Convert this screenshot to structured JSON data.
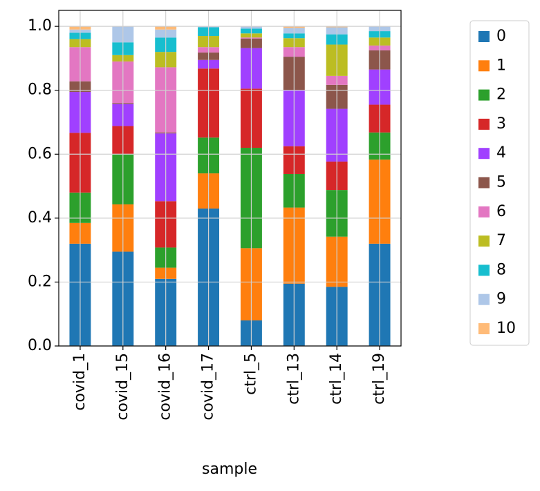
{
  "chart_data": {
    "type": "stacked_bar",
    "xlabel": "sample",
    "categories": [
      "covid_1",
      "covid_15",
      "covid_16",
      "covid_17",
      "ctrl_5",
      "ctrl_13",
      "ctrl_14",
      "ctrl_19"
    ],
    "ylim": [
      0,
      1.05
    ],
    "yticks": [
      {
        "value": 0,
        "label": "0.0"
      },
      0.2,
      0.4,
      0.6,
      0.8,
      {
        "value": 1,
        "label": "1.0"
      }
    ],
    "grid": true,
    "legend": "outside right",
    "series": [
      {
        "name": "0",
        "color": "#1f77b4",
        "values": [
          0.32,
          0.295,
          0.21,
          0.43,
          0.08,
          0.195,
          0.185,
          0.32
        ]
      },
      {
        "name": "1",
        "color": "#ff7f0e",
        "values": [
          0.065,
          0.148,
          0.035,
          0.11,
          0.226,
          0.238,
          0.157,
          0.263
        ]
      },
      {
        "name": "2",
        "color": "#2ca02c",
        "values": [
          0.095,
          0.157,
          0.063,
          0.112,
          0.314,
          0.105,
          0.146,
          0.085
        ]
      },
      {
        "name": "3",
        "color": "#d62728",
        "values": [
          0.187,
          0.088,
          0.145,
          0.216,
          0.185,
          0.087,
          0.089,
          0.087
        ]
      },
      {
        "name": "4",
        "color": "#a040ff",
        "values": [
          0.128,
          0.069,
          0.212,
          0.027,
          0.127,
          0.175,
          0.165,
          0.11
        ]
      },
      {
        "name": "5",
        "color": "#8c564b",
        "values": [
          0.033,
          0.003,
          0.003,
          0.023,
          0.03,
          0.105,
          0.075,
          0.06
        ]
      },
      {
        "name": "6",
        "color": "#e377c2",
        "values": [
          0.107,
          0.13,
          0.204,
          0.017,
          0.003,
          0.03,
          0.028,
          0.015
        ]
      },
      {
        "name": "7",
        "color": "#bcbd22",
        "values": [
          0.025,
          0.02,
          0.048,
          0.035,
          0.013,
          0.028,
          0.098,
          0.025
        ]
      },
      {
        "name": "8",
        "color": "#17becf",
        "values": [
          0.02,
          0.04,
          0.045,
          0.027,
          0.015,
          0.015,
          0.032,
          0.02
        ]
      },
      {
        "name": "9",
        "color": "#aec7e8",
        "values": [
          0.01,
          0.05,
          0.025,
          0.003,
          0.007,
          0.017,
          0.022,
          0.015
        ]
      },
      {
        "name": "10",
        "color": "#ffbb78",
        "values": [
          0.01,
          0,
          0.01,
          0,
          0,
          0.005,
          0.003,
          0
        ]
      }
    ]
  }
}
